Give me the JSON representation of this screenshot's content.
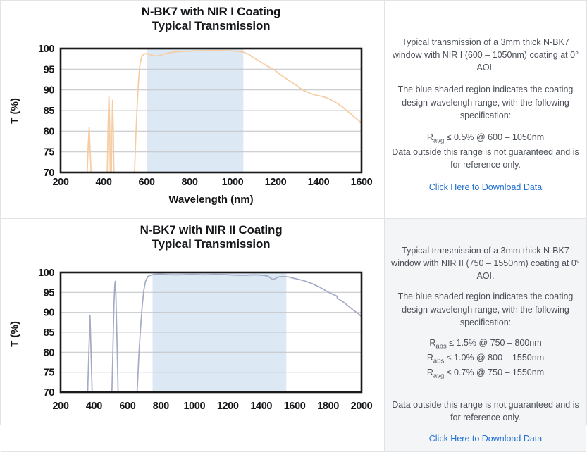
{
  "chart_data": [
    {
      "type": "line",
      "title": "N-BK7 with NIR I Coating",
      "subtitle": "Typical Transmission",
      "xlabel": "Wavelength (nm)",
      "ylabel": "T (%)",
      "xlim": [
        200,
        1600
      ],
      "ylim": [
        70,
        100
      ],
      "xticks": [
        200,
        400,
        600,
        800,
        1000,
        1200,
        1400,
        1600
      ],
      "yticks": [
        70,
        75,
        80,
        85,
        90,
        95,
        100
      ],
      "grid": "horizontal",
      "legend": "none",
      "design_range": [
        600,
        1050
      ],
      "shade_color": "#dce9f5",
      "line_color": "#f6cca2",
      "series": [
        {
          "name": "Typical Transmission",
          "points": [
            [
              318,
              62
            ],
            [
              324,
              70
            ],
            [
              329,
              77
            ],
            [
              333,
              81
            ],
            [
              337,
              76
            ],
            [
              342,
              70
            ],
            [
              346,
              62
            ],
            [
              412,
              63
            ],
            [
              417,
              70
            ],
            [
              421,
              81
            ],
            [
              425,
              88.5
            ],
            [
              428,
              83
            ],
            [
              430,
              73
            ],
            [
              432,
              65
            ],
            [
              435,
              65
            ],
            [
              437,
              73
            ],
            [
              440,
              83
            ],
            [
              442,
              87.5
            ],
            [
              445,
              81
            ],
            [
              448,
              71
            ],
            [
              451,
              63
            ],
            [
              538,
              62
            ],
            [
              544,
              70
            ],
            [
              550,
              79
            ],
            [
              556,
              86
            ],
            [
              562,
              91.5
            ],
            [
              568,
              95.5
            ],
            [
              574,
              97.5
            ],
            [
              580,
              98.3
            ],
            [
              588,
              98.6
            ],
            [
              596,
              98.8
            ],
            [
              610,
              98.6
            ],
            [
              625,
              98.4
            ],
            [
              645,
              98.2
            ],
            [
              665,
              98.4
            ],
            [
              690,
              98.8
            ],
            [
              720,
              99.1
            ],
            [
              760,
              99.3
            ],
            [
              810,
              99.4
            ],
            [
              860,
              99.5
            ],
            [
              910,
              99.5
            ],
            [
              960,
              99.5
            ],
            [
              1000,
              99.45
            ],
            [
              1030,
              99.3
            ],
            [
              1050,
              99.15
            ],
            [
              1075,
              98.6
            ],
            [
              1100,
              97.7
            ],
            [
              1130,
              96.8
            ],
            [
              1160,
              95.8
            ],
            [
              1190,
              95.0
            ],
            [
              1230,
              93.4
            ],
            [
              1270,
              92.0
            ],
            [
              1300,
              91.0
            ],
            [
              1325,
              90.0
            ],
            [
              1360,
              89.2
            ],
            [
              1390,
              88.7
            ],
            [
              1420,
              88.4
            ],
            [
              1450,
              87.8
            ],
            [
              1480,
              87.0
            ],
            [
              1510,
              85.9
            ],
            [
              1540,
              84.6
            ],
            [
              1570,
              83.3
            ],
            [
              1600,
              82.0
            ]
          ]
        }
      ]
    },
    {
      "type": "line",
      "title": "N-BK7 with NIR II Coating",
      "subtitle": "Typical Transmission",
      "xlabel": "",
      "ylabel": "T (%)",
      "xlim": [
        200,
        2000
      ],
      "ylim": [
        70,
        100
      ],
      "xticks": [
        200,
        400,
        600,
        800,
        1000,
        1200,
        1400,
        1600,
        1800,
        2000
      ],
      "yticks": [
        70,
        75,
        80,
        85,
        90,
        95,
        100
      ],
      "grid": "horizontal",
      "legend": "none",
      "design_range": [
        750,
        1550
      ],
      "shade_color": "#dce9f5",
      "line_color": "#a5abc5",
      "series": [
        {
          "name": "Typical Transmission",
          "points": [
            [
              355,
              62
            ],
            [
              362,
              70
            ],
            [
              370,
              81
            ],
            [
              376,
              89.3
            ],
            [
              382,
              80
            ],
            [
              388,
              71
            ],
            [
              392,
              63
            ],
            [
              500,
              62
            ],
            [
              507,
              70
            ],
            [
              513,
              81
            ],
            [
              519,
              92
            ],
            [
              524,
              97
            ],
            [
              527,
              97.8
            ],
            [
              531,
              94
            ],
            [
              537,
              84
            ],
            [
              543,
              72
            ],
            [
              547,
              63
            ],
            [
              648,
              62
            ],
            [
              658,
              70
            ],
            [
              668,
              79
            ],
            [
              678,
              86
            ],
            [
              688,
              91.5
            ],
            [
              698,
              95.5
            ],
            [
              708,
              97.8
            ],
            [
              722,
              99.0
            ],
            [
              738,
              99.3
            ],
            [
              760,
              99.5
            ],
            [
              790,
              99.6
            ],
            [
              830,
              99.5
            ],
            [
              870,
              99.4
            ],
            [
              910,
              99.4
            ],
            [
              960,
              99.5
            ],
            [
              1010,
              99.5
            ],
            [
              1060,
              99.4
            ],
            [
              1110,
              99.5
            ],
            [
              1160,
              99.5
            ],
            [
              1210,
              99.4
            ],
            [
              1260,
              99.3
            ],
            [
              1310,
              99.3
            ],
            [
              1360,
              99.4
            ],
            [
              1410,
              99.3
            ],
            [
              1440,
              99.1
            ],
            [
              1460,
              98.5
            ],
            [
              1472,
              98.2
            ],
            [
              1485,
              98.5
            ],
            [
              1505,
              98.9
            ],
            [
              1530,
              99.0
            ],
            [
              1560,
              98.9
            ],
            [
              1600,
              98.5
            ],
            [
              1650,
              98.0
            ],
            [
              1700,
              97.3
            ],
            [
              1750,
              96.3
            ],
            [
              1800,
              95.1
            ],
            [
              1835,
              94.4
            ],
            [
              1852,
              94.1
            ],
            [
              1856,
              93.5
            ],
            [
              1885,
              92.8
            ],
            [
              1915,
              91.8
            ],
            [
              1950,
              90.6
            ],
            [
              1980,
              89.7
            ],
            [
              2000,
              88.9
            ]
          ]
        }
      ]
    }
  ],
  "panels": [
    {
      "description": "Typical transmission of a 3mm thick N-BK7 window with NIR I (600 – 1050nm) coating at 0° AOI.",
      "note": "The blue shaded region indicates the coating design wavelengh range, with the following specification:",
      "specs": [
        {
          "symbol": "R",
          "subscript": "avg",
          "condition": " ≤ 0.5% @ 600 – 1050nm"
        }
      ],
      "disclaimer": "Data outside this range is not guaranteed and is for reference only.",
      "link_label": "Click Here to Download Data"
    },
    {
      "description": "Typical transmission of a 3mm thick N-BK7 window with NIR II (750 – 1550nm) coating at 0° AOI.",
      "note": "The blue shaded region indicates the coating design wavelengh range, with the following specification:",
      "specs": [
        {
          "symbol": "R",
          "subscript": "abs",
          "condition": " ≤ 1.5% @ 750 – 800nm"
        },
        {
          "symbol": "R",
          "subscript": "abs",
          "condition": " ≤ 1.0% @ 800 – 1550nm"
        },
        {
          "symbol": "R",
          "subscript": "avg",
          "condition": " ≤ 0.7% @ 750 – 1550nm"
        }
      ],
      "disclaimer": "Data outside this range is not guaranteed and is for reference only.",
      "link_label": "Click Here to Download Data"
    }
  ],
  "colors": {
    "link_blue": "#2170d2",
    "grid_gray": "#c6c8cb",
    "frame_black": "#1a1a1a",
    "panel_alt_bg": "#f4f5f7"
  }
}
